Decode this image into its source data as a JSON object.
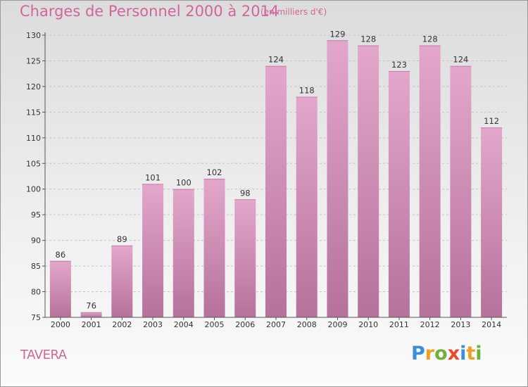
{
  "chart_data": {
    "type": "bar",
    "title": "Charges de Personnel 2000 à 2014",
    "unit_note": "(en milliers d'€)",
    "categories": [
      "2000",
      "2001",
      "2002",
      "2003",
      "2004",
      "2005",
      "2006",
      "2007",
      "2008",
      "2009",
      "2010",
      "2011",
      "2012",
      "2013",
      "2014"
    ],
    "values": [
      86,
      76,
      89,
      101,
      100,
      102,
      98,
      124,
      118,
      129,
      128,
      123,
      128,
      124,
      112
    ],
    "ylim": [
      75,
      130
    ],
    "yticks": [
      75,
      80,
      85,
      90,
      95,
      100,
      105,
      110,
      115,
      120,
      125,
      130
    ],
    "xlabel": "",
    "ylabel": "",
    "grid": "horizontal-dashed",
    "bar_color_top": "#e3a7cb",
    "bar_color_bottom": "#b5729b"
  },
  "footer": {
    "commune": "TAVERA",
    "logo_letters": [
      "P",
      "r",
      "o",
      "x",
      "i",
      "t",
      "i"
    ],
    "logo_colors": [
      "#3b8ed8",
      "#f0a020",
      "#70b13a",
      "#e84a2a",
      "#3b8ed8",
      "#f0a020",
      "#70b13a"
    ]
  },
  "colors": {
    "title": "#d0669a",
    "axis": "#555555"
  }
}
